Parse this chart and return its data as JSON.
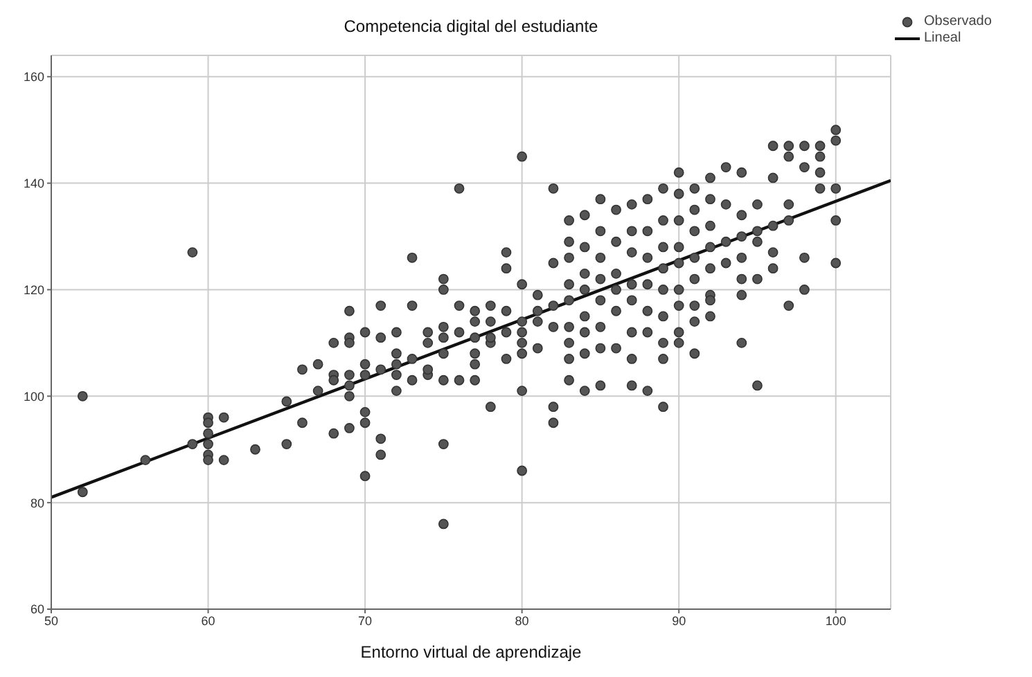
{
  "chart_data": {
    "type": "scatter",
    "title": "Competencia digital del estudiante",
    "xlabel": "Entorno virtual de aprendizaje",
    "xlim": [
      50,
      103.5
    ],
    "ylim": [
      60,
      164
    ],
    "xticks": [
      50,
      60,
      70,
      80,
      90,
      100
    ],
    "yticks": [
      60,
      80,
      100,
      120,
      140,
      160
    ],
    "grid": true,
    "legend": "top right",
    "marker": "circle",
    "series": [
      {
        "name": "Observado",
        "type": "scatter",
        "color": "#555555",
        "x": [
          52,
          52,
          56,
          59,
          59,
          60,
          60,
          60,
          60,
          60,
          60,
          61,
          61,
          63,
          65,
          65,
          66,
          66,
          67,
          67,
          68,
          68,
          68,
          68,
          69,
          69,
          69,
          69,
          69,
          69,
          69,
          70,
          70,
          70,
          70,
          70,
          70,
          71,
          71,
          71,
          71,
          71,
          72,
          72,
          72,
          72,
          72,
          73,
          73,
          73,
          73,
          74,
          74,
          74,
          74,
          75,
          75,
          75,
          75,
          75,
          75,
          75,
          75,
          76,
          76,
          76,
          76,
          77,
          77,
          77,
          77,
          77,
          77,
          78,
          78,
          78,
          78,
          78,
          79,
          79,
          79,
          79,
          79,
          80,
          80,
          80,
          80,
          80,
          80,
          80,
          80,
          81,
          81,
          81,
          81,
          82,
          82,
          82,
          82,
          82,
          82,
          83,
          83,
          83,
          83,
          83,
          83,
          83,
          83,
          83,
          84,
          84,
          84,
          84,
          84,
          84,
          84,
          84,
          85,
          85,
          85,
          85,
          85,
          85,
          85,
          85,
          86,
          86,
          86,
          86,
          86,
          86,
          87,
          87,
          87,
          87,
          87,
          87,
          87,
          87,
          88,
          88,
          88,
          88,
          88,
          88,
          88,
          89,
          89,
          89,
          89,
          89,
          89,
          89,
          89,
          89,
          90,
          90,
          90,
          90,
          90,
          90,
          90,
          90,
          90,
          91,
          91,
          91,
          91,
          91,
          91,
          91,
          91,
          92,
          92,
          92,
          92,
          92,
          92,
          92,
          92,
          93,
          93,
          93,
          93,
          94,
          94,
          94,
          94,
          94,
          94,
          94,
          95,
          95,
          95,
          95,
          95,
          96,
          96,
          96,
          96,
          96,
          97,
          97,
          97,
          97,
          97,
          98,
          98,
          98,
          98,
          99,
          99,
          99,
          99,
          100,
          100,
          100,
          100,
          100
        ],
        "values": [
          100,
          82,
          88,
          91,
          127,
          96,
          95,
          93,
          91,
          89,
          88,
          96,
          88,
          90,
          91,
          99,
          105,
          95,
          106,
          101,
          93,
          110,
          104,
          103,
          116,
          111,
          110,
          104,
          102,
          100,
          94,
          112,
          106,
          104,
          97,
          95,
          85,
          117,
          111,
          105,
          92,
          89,
          112,
          108,
          101,
          104,
          106,
          126,
          117,
          107,
          103,
          110,
          104,
          105,
          112,
          122,
          120,
          113,
          111,
          108,
          103,
          91,
          76,
          139,
          117,
          112,
          103,
          116,
          114,
          111,
          108,
          106,
          103,
          117,
          114,
          110,
          98,
          111,
          127,
          124,
          116,
          112,
          107,
          145,
          121,
          114,
          112,
          110,
          108,
          101,
          86,
          119,
          116,
          114,
          109,
          139,
          125,
          117,
          113,
          98,
          95,
          133,
          129,
          126,
          121,
          118,
          113,
          110,
          107,
          103,
          134,
          128,
          123,
          120,
          115,
          112,
          108,
          101,
          137,
          131,
          126,
          122,
          118,
          113,
          109,
          102,
          135,
          129,
          123,
          120,
          116,
          109,
          136,
          131,
          127,
          121,
          118,
          112,
          107,
          102,
          137,
          131,
          126,
          121,
          116,
          112,
          101,
          139,
          133,
          128,
          124,
          120,
          115,
          110,
          107,
          98,
          142,
          138,
          133,
          128,
          125,
          120,
          117,
          112,
          110,
          139,
          135,
          131,
          126,
          122,
          117,
          114,
          108,
          141,
          137,
          132,
          128,
          124,
          119,
          115,
          118,
          143,
          136,
          129,
          125,
          142,
          134,
          130,
          126,
          122,
          119,
          110,
          136,
          131,
          129,
          122,
          102,
          147,
          141,
          132,
          127,
          124,
          147,
          145,
          136,
          133,
          117,
          147,
          143,
          126,
          120,
          147,
          145,
          142,
          139,
          150,
          148,
          139,
          133,
          125
        ]
      },
      {
        "name": "Lineal",
        "type": "line",
        "color": "#111111",
        "line_style": "solid",
        "marker": "none",
        "x": [
          50,
          103.5
        ],
        "values": [
          81,
          140.5
        ]
      }
    ]
  }
}
